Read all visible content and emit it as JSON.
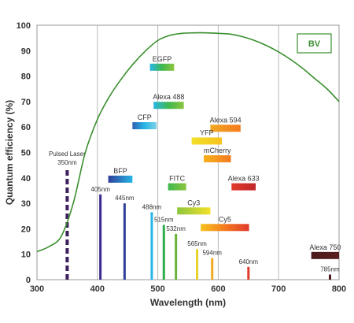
{
  "chart_data": {
    "type": "line",
    "title": "",
    "xlabel": "Wavelength (nm)",
    "ylabel": "Quantum efficiency (%)",
    "xlim": [
      300,
      800
    ],
    "ylim": [
      0,
      100
    ],
    "xticks": [
      300,
      400,
      500,
      600,
      700,
      800
    ],
    "yticks": [
      0,
      10,
      20,
      30,
      40,
      50,
      60,
      70,
      80,
      90,
      100
    ],
    "grid": "vertical",
    "legend": "top-right",
    "series": [
      {
        "name": "BV",
        "color": "#3a8f2e",
        "x": [
          300,
          320,
          340,
          360,
          380,
          400,
          420,
          440,
          460,
          480,
          500,
          520,
          540,
          560,
          580,
          600,
          620,
          640,
          660,
          680,
          700,
          720,
          740,
          760,
          780,
          800
        ],
        "y": [
          11,
          13,
          17,
          30,
          50,
          63,
          72,
          79,
          85,
          90,
          94,
          96,
          96.8,
          97,
          97,
          96.8,
          96.5,
          95.5,
          94,
          92,
          89.5,
          86.5,
          83,
          79,
          75,
          70
        ]
      }
    ],
    "laser_lines": [
      {
        "label": "Pulsed Laser\n350nm",
        "x": 350,
        "y": 44,
        "color": "#3d1f5c",
        "dashed": true
      },
      {
        "label": "405nm",
        "x": 405,
        "y": 33.5,
        "color": "#3a2c8f"
      },
      {
        "label": "445nm",
        "x": 445,
        "y": 30,
        "color": "#2f3f99"
      },
      {
        "label": "488nm",
        "x": 490,
        "y": 26.5,
        "color": "#27b6e6"
      },
      {
        "label": "515nm",
        "x": 510,
        "y": 21.5,
        "color": "#2eab4a"
      },
      {
        "label": "532nm",
        "x": 530,
        "y": 18,
        "color": "#6ab33a"
      },
      {
        "label": "565nm",
        "x": 565,
        "y": 12,
        "color": "#e8d22a"
      },
      {
        "label": "594nm",
        "x": 590,
        "y": 8.5,
        "color": "#f2a81f"
      },
      {
        "label": "640nm",
        "x": 650,
        "y": 5,
        "color": "#e03a2b"
      },
      {
        "label": "785nm",
        "x": 785,
        "y": 2,
        "color": "#4a1a1a"
      }
    ],
    "dyes": [
      {
        "label": "EGFP",
        "x_start": 487,
        "x_end": 527,
        "y": 83.5,
        "colors": [
          "#27b6e6",
          "#3fb84f",
          "#8dc63f"
        ]
      },
      {
        "label": "Alexa 488",
        "x_start": 493,
        "x_end": 543,
        "y": 68.5,
        "colors": [
          "#27b6e6",
          "#3fb84f",
          "#8dc63f"
        ]
      },
      {
        "label": "CFP",
        "x_start": 458,
        "x_end": 498,
        "y": 60.5,
        "colors": [
          "#2f5fb3",
          "#27b6e6",
          "#7fd0e6"
        ]
      },
      {
        "label": "Alexa 594",
        "x_start": 587,
        "x_end": 637,
        "y": 59.5,
        "colors": [
          "#f2a81f",
          "#f47a20"
        ]
      },
      {
        "label": "YFP",
        "x_start": 556,
        "x_end": 606,
        "y": 54.5,
        "colors": [
          "#f3e02a",
          "#f7c21e"
        ]
      },
      {
        "label": "mCherry",
        "x_start": 576,
        "x_end": 621,
        "y": 47.5,
        "colors": [
          "#f7b21e",
          "#f47a20"
        ]
      },
      {
        "label": "BFP",
        "x_start": 418,
        "x_end": 458,
        "y": 39.5,
        "colors": [
          "#2f3f99",
          "#27b6e6"
        ]
      },
      {
        "label": "FITC",
        "x_start": 517,
        "x_end": 547,
        "y": 36.5,
        "colors": [
          "#3fb84f",
          "#8dc63f"
        ]
      },
      {
        "label": "Alexa 633",
        "x_start": 622,
        "x_end": 662,
        "y": 36.5,
        "colors": [
          "#e03a2b",
          "#c0282a"
        ]
      },
      {
        "label": "Cy3",
        "x_start": 532,
        "x_end": 587,
        "y": 27,
        "colors": [
          "#8dc63f",
          "#f3e02a"
        ]
      },
      {
        "label": "Cy5",
        "x_start": 571,
        "x_end": 651,
        "y": 20.5,
        "colors": [
          "#f7c21e",
          "#f47a20",
          "#e03a2b"
        ]
      },
      {
        "label": "Alexa 750",
        "x_start": 754,
        "x_end": 806,
        "y": 9.5,
        "colors": [
          "#4a1a1a",
          "#5a1e1e"
        ]
      }
    ]
  }
}
